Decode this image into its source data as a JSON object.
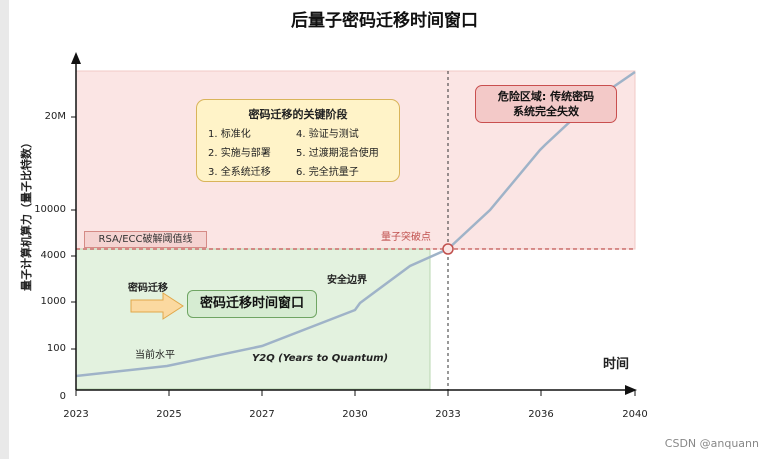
{
  "title": "后量子密码迁移时间窗口",
  "y_axis_label": "量子计算机算力（量子比特数）",
  "x_axis_label": "时间",
  "x_ticks": [
    "2023",
    "2025",
    "2027",
    "2030",
    "2033",
    "2036",
    "2040"
  ],
  "y_ticks": [
    "0",
    "100",
    "1000",
    "4000",
    "10000",
    "20M"
  ],
  "threshold_label": "RSA/ECC破解阈值线",
  "breakthrough_label": "量子突破点",
  "danger_zone": {
    "line1": "危险区域: 传统密码",
    "line2": "系统完全失效"
  },
  "phases": {
    "title": "密码迁移的关键阶段",
    "steps": [
      "1. 标准化",
      "2. 实施与部署",
      "3. 全系统迁移",
      "4. 验证与测试",
      "5. 过渡期混合使用",
      "6. 完全抗量子"
    ]
  },
  "migration_arrow_label": "密码迁移",
  "window_label": "密码迁移时间窗口",
  "current_level_label": "当前水平",
  "safety_margin_label": "安全边界",
  "y2q_label": "Y2Q (Years to Quantum)",
  "watermark": "CSDN @anquann",
  "colors": {
    "danger_fill": "#fbe5e4",
    "safe_fill": "#e3f2df",
    "curve": "#9fb3c8",
    "threshold_line": "#c0504d",
    "arrow_fill": "#fbd9a0"
  }
}
